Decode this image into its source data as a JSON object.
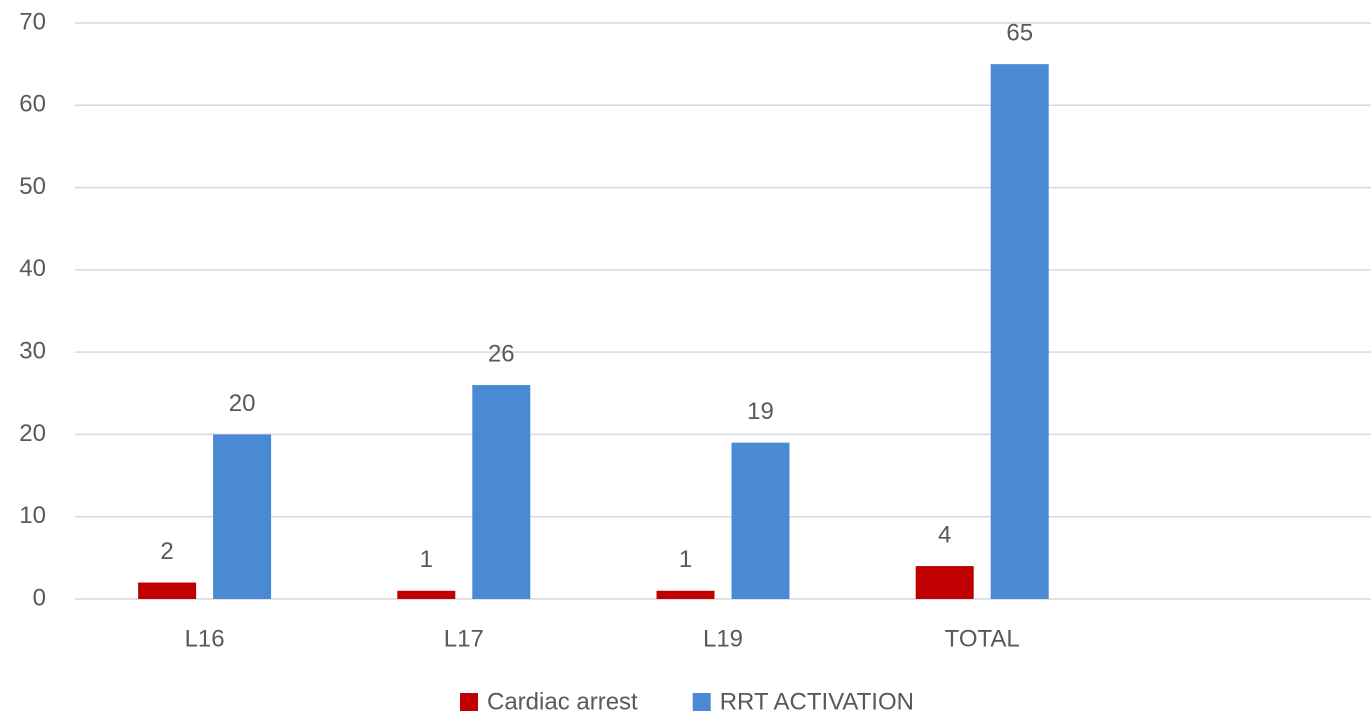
{
  "chart_data": {
    "type": "bar",
    "categories": [
      "L16",
      "L17",
      "L19",
      "TOTAL",
      null
    ],
    "series": [
      {
        "name": "Cardiac arrest",
        "color": "#c00000",
        "values": [
          2,
          1,
          1,
          4,
          null
        ]
      },
      {
        "name": "RRT ACTIVATION",
        "color": "#4a89d4",
        "values": [
          20,
          26,
          19,
          65,
          null
        ]
      }
    ],
    "ylim": [
      0,
      70
    ],
    "yticks": [
      0,
      10,
      20,
      30,
      40,
      50,
      60,
      70
    ],
    "grid": true,
    "legend": "bottom"
  }
}
